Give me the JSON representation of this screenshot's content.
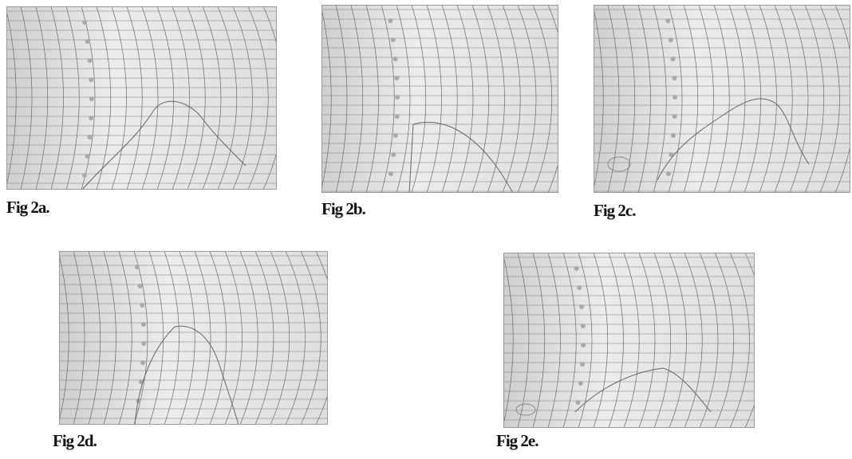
{
  "figures": [
    {
      "caption": "Fig 2a."
    },
    {
      "caption": "Fig 2b."
    },
    {
      "caption": "Fig 2c."
    },
    {
      "caption": "Fig 2d."
    },
    {
      "caption": "Fig 2e."
    }
  ]
}
